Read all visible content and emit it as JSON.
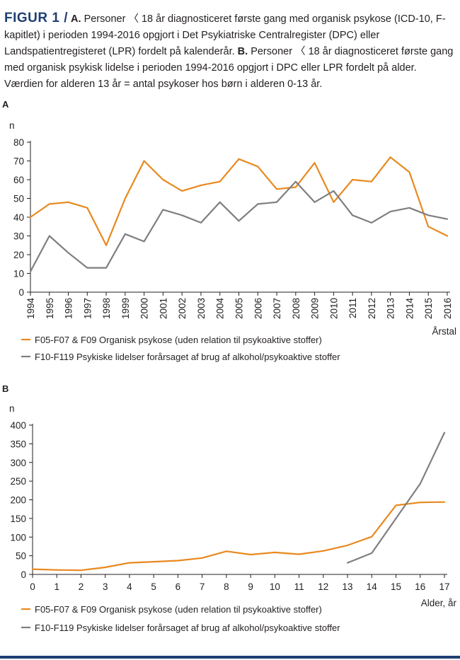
{
  "caption": {
    "figure_label": "FIGUR 1 /",
    "part_a_label": "A.",
    "part_a_text": " Personer 〈 18 år diagnosticeret første gang med organisk psykose (ICD-10, F-kapitlet) i perioden 1994-2016 opgjort i Det Psykiatriske Centralregister (DPC) eller Landspatientregisteret (LPR) fordelt på kalenderår. ",
    "part_b_label": "B.",
    "part_b_text": " Personer 〈 18 år diagnosticeret første gang med organisk psykisk lidelse i perioden 1994-2016 opgjort i DPC eller LPR fordelt på alder. Værdien for alderen 13 år = antal psykoser hos børn i alderen 0-13 år."
  },
  "colors": {
    "orange": "#e8891e",
    "gray": "#7f7f7f",
    "axis": "#231f20",
    "rule": "#1f3f73"
  },
  "chart_data": [
    {
      "type": "line",
      "panel_label": "A",
      "ylabel": "n",
      "xlabel": "Årstal",
      "ylim": [
        0,
        80
      ],
      "yticks": [
        0,
        10,
        20,
        30,
        40,
        50,
        60,
        70,
        80
      ],
      "x": [
        "1994",
        "1995",
        "1996",
        "1997",
        "1998",
        "1999",
        "2000",
        "2001",
        "2002",
        "2003",
        "2004",
        "2005",
        "2006",
        "2007",
        "2008",
        "2009",
        "2010",
        "2011",
        "2012",
        "2013",
        "2014",
        "2015",
        "2016"
      ],
      "grid": false,
      "legend_position": "bottom",
      "series": [
        {
          "name": "F05-F07 & F09 Organisk psykose (uden relation til psykoaktive stoffer)",
          "color": "#e8891e",
          "values": [
            40,
            47,
            48,
            45,
            25,
            50,
            70,
            60,
            54,
            57,
            59,
            71,
            67,
            55,
            56,
            69,
            48,
            60,
            59,
            72,
            64,
            35,
            30
          ]
        },
        {
          "name": "F10-F119 Psykiske lidelser forårsaget af brug af alkohol/psykoaktive stoffer",
          "color": "#7f7f7f",
          "values": [
            11,
            30,
            21,
            13,
            13,
            31,
            27,
            44,
            41,
            37,
            48,
            38,
            47,
            48,
            59,
            48,
            54,
            41,
            37,
            43,
            45,
            41,
            39
          ]
        }
      ]
    },
    {
      "type": "line",
      "panel_label": "B",
      "ylabel": "n",
      "xlabel": "Alder, år",
      "ylim": [
        0,
        400
      ],
      "yticks": [
        0,
        50,
        100,
        150,
        200,
        250,
        300,
        350,
        400
      ],
      "x": [
        "0",
        "1",
        "2",
        "3",
        "4",
        "5",
        "6",
        "7",
        "8",
        "9",
        "10",
        "11",
        "12",
        "13",
        "14",
        "15",
        "16",
        "17"
      ],
      "grid": false,
      "legend_position": "bottom",
      "series": [
        {
          "name": "F05-F07 & F09 Organisk psykose (uden relation til psykoaktive stoffer)",
          "color": "#e8891e",
          "values": [
            14,
            12,
            11,
            19,
            31,
            34,
            37,
            44,
            62,
            53,
            59,
            54,
            63,
            78,
            101,
            185,
            193,
            194
          ]
        },
        {
          "name": "F10-F119 Psykiske lidelser forårsaget af brug af alkohol/psykoaktive stoffer",
          "color": "#7f7f7f",
          "values": [
            null,
            null,
            null,
            null,
            null,
            null,
            null,
            null,
            null,
            null,
            null,
            null,
            null,
            31,
            57,
            150,
            243,
            380
          ]
        }
      ]
    }
  ]
}
